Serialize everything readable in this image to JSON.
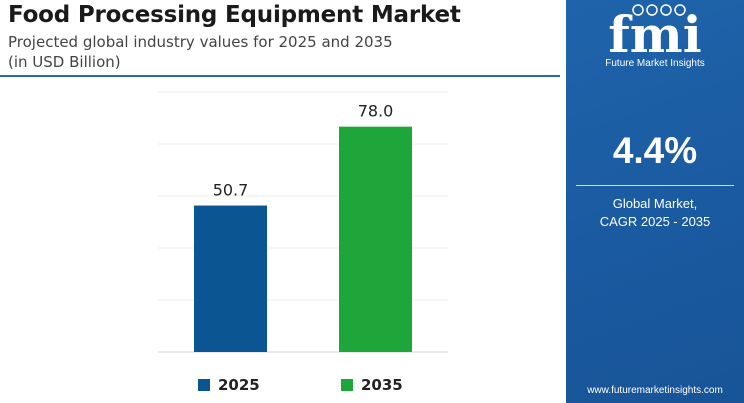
{
  "header": {
    "title": "Food Processing Equipment Market",
    "subtitle_line1": "Projected global industry values for 2025 and 2035",
    "subtitle_line2": "(in USD Billion)"
  },
  "chart_data": {
    "type": "bar",
    "categories": [
      "2025",
      "2035"
    ],
    "values": [
      50.7,
      78.0
    ],
    "value_labels": [
      "50.7",
      "78.0"
    ],
    "colors": [
      "#0b5592",
      "#1ea63a"
    ],
    "legend": [
      "2025",
      "2035"
    ],
    "legend_position": "bottom",
    "ylim": [
      0,
      90
    ],
    "grid": true
  },
  "sidebar": {
    "logo_text": "fmi",
    "logo_subtitle": "Future Market Insights",
    "cagr_value": "4.4%",
    "cagr_label_line1": "Global Market,",
    "cagr_label_line2": "CAGR 2025 - 2035",
    "website": "www.futuremarketinsights.com",
    "background_color": "#1d5fa6"
  }
}
